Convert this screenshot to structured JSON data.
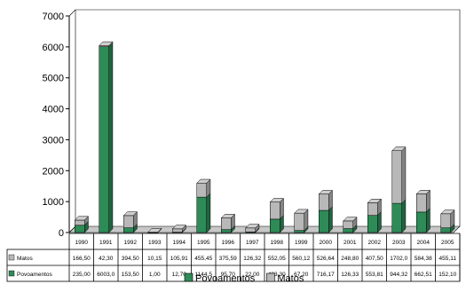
{
  "chart_data": {
    "type": "bar",
    "stacked": true,
    "style": "3d",
    "categories": [
      "1990",
      "1991",
      "1992",
      "1993",
      "1994",
      "1995",
      "1996",
      "1997",
      "1998",
      "1999",
      "2000",
      "2001",
      "2002",
      "2003",
      "2004",
      "2005"
    ],
    "series": [
      {
        "name": "Povoamentos",
        "color": "#2e8b57",
        "values": [
          235,
          6003,
          153.5,
          1,
          12.7,
          1144.5,
          95.7,
          22,
          433.3,
          67.2,
          716.17,
          126.33,
          553.81,
          944.32,
          662.51,
          152.1
        ],
        "labels": [
          "235,00",
          "6003,0",
          "153,50",
          "1,00",
          "12,70",
          "1144,5",
          "95,70",
          "22,00",
          "433,30",
          "67,20",
          "716,17",
          "126,33",
          "553,81",
          "944,32",
          "662,51",
          "152,10"
        ]
      },
      {
        "name": "Matos",
        "color": "#b8b8b8",
        "values": [
          166.5,
          42.3,
          394.5,
          10.15,
          105.91,
          455.45,
          375.59,
          126.32,
          552.05,
          560.12,
          526.64,
          248.8,
          407.5,
          1702,
          584.38,
          455.11
        ],
        "labels": [
          "166,50",
          "42,30",
          "394,50",
          "10,15",
          "105,91",
          "455,45",
          "375,59",
          "126,32",
          "552,05",
          "560,12",
          "526,64",
          "248,80",
          "407,50",
          "1702,0",
          "584,38",
          "455,11"
        ]
      }
    ],
    "ylim": [
      0,
      7000
    ],
    "yticks": [
      0,
      1000,
      2000,
      3000,
      4000,
      5000,
      6000,
      7000
    ],
    "table_rows": [
      {
        "label": "Matos",
        "series": 1
      },
      {
        "label": "Povoamentos",
        "series": 0
      }
    ],
    "legend": {
      "placement": "bottom",
      "items": [
        "Povoamentos",
        "Matos"
      ]
    },
    "grid": false
  }
}
